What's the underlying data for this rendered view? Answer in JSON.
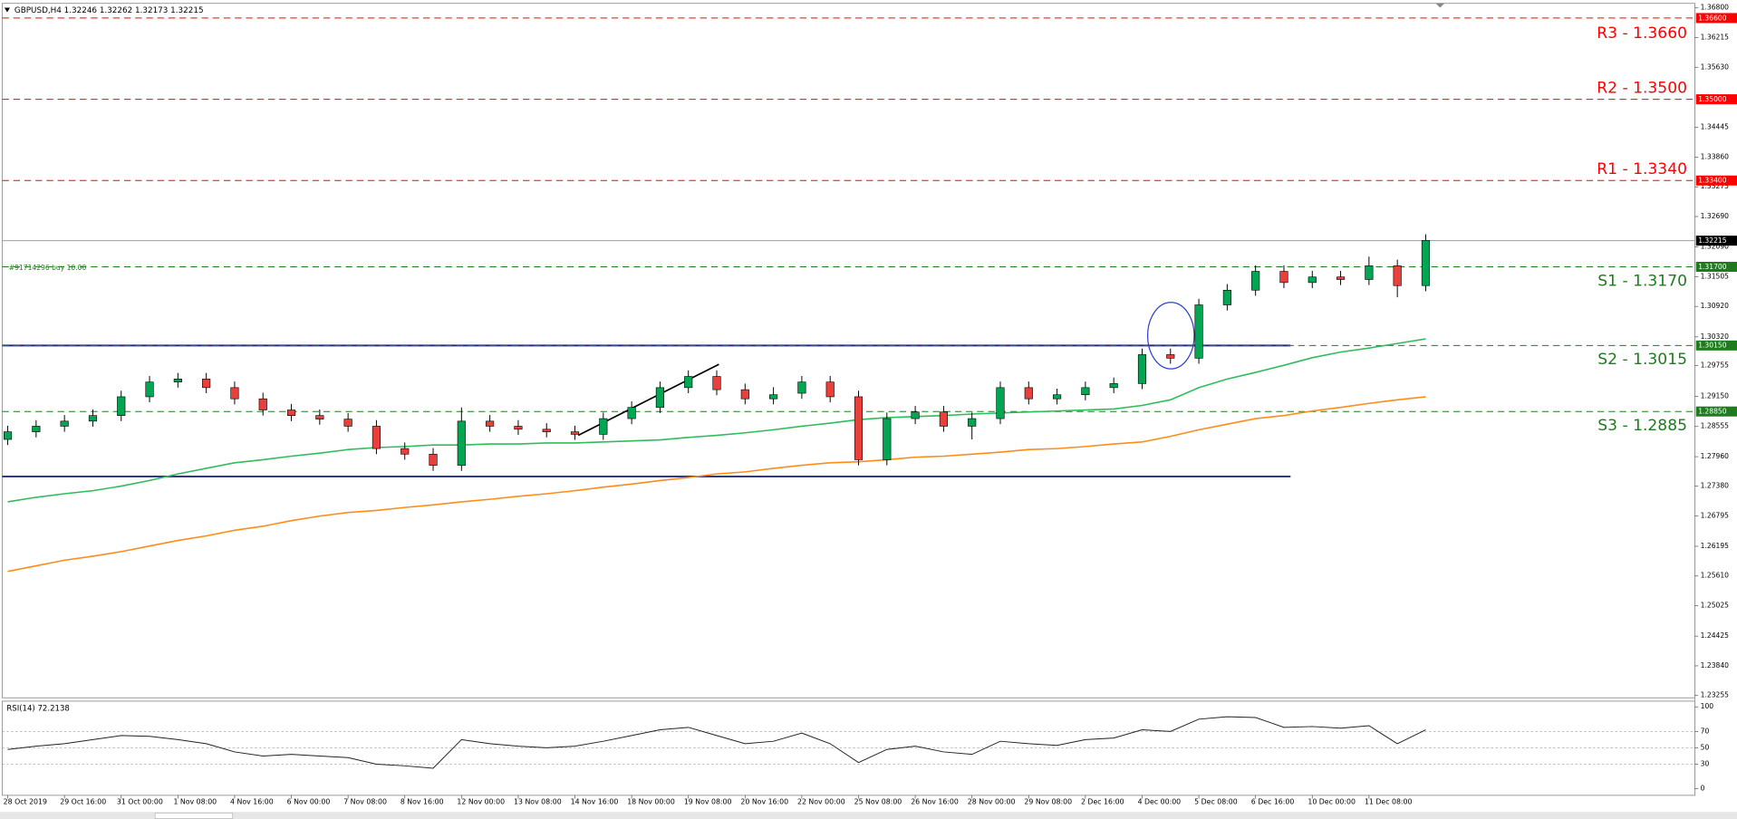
{
  "chart_data": [
    {
      "type": "candlestick",
      "title": "GBPUSD,H4  1.32246 1.32262 1.32173 1.32215",
      "order_label": "#91714296 buy 10.00",
      "categories": [
        "28 Oct 2019",
        null,
        "29 Oct 16:00",
        null,
        "31 Oct 00:00",
        null,
        "1 Nov 08:00",
        null,
        "4 Nov 16:00",
        null,
        "6 Nov 00:00",
        null,
        "7 Nov 08:00",
        null,
        "8 Nov 16:00",
        null,
        "12 Nov 00:00",
        null,
        "13 Nov 08:00",
        null,
        "14 Nov 16:00",
        null,
        "18 Nov 00:00",
        null,
        "19 Nov 08:00",
        null,
        "20 Nov 16:00",
        null,
        "22 Nov 00:00",
        null,
        "25 Nov 08:00",
        null,
        "26 Nov 16:00",
        null,
        "28 Nov 00:00",
        null,
        "29 Nov 08:00",
        null,
        "2 Dec 16:00",
        null,
        "4 Dec 00:00",
        null,
        "5 Dec 08:00",
        null,
        "6 Dec 16:00",
        null,
        "10 Dec 00:00",
        null,
        "11 Dec 08:00",
        null,
        null
      ],
      "open": [
        1.283,
        1.2845,
        1.2856,
        1.2866,
        1.2877,
        1.2914,
        1.2943,
        1.2949,
        1.2932,
        1.291,
        1.2888,
        1.2877,
        1.287,
        1.2856,
        1.2812,
        1.2801,
        1.2779,
        1.2866,
        1.2856,
        1.285,
        1.2845,
        1.284,
        1.2871,
        1.2893,
        1.2932,
        1.2954,
        1.2928,
        1.291,
        1.2921,
        1.2943,
        1.2914,
        1.279,
        1.2871,
        1.2884,
        1.2856,
        1.2871,
        1.2932,
        1.291,
        1.2918,
        1.2932,
        1.294,
        1.2997,
        1.299,
        1.3095,
        1.3124,
        1.3161,
        1.3139,
        1.315,
        1.3145,
        1.3172,
        1.3133
      ],
      "high": [
        1.2857,
        1.2868,
        1.2878,
        1.2889,
        1.2926,
        1.2955,
        1.2961,
        1.2961,
        1.2944,
        1.2922,
        1.29,
        1.2889,
        1.2882,
        1.2868,
        1.2824,
        1.2813,
        1.2893,
        1.2878,
        1.2868,
        1.2862,
        1.2857,
        1.2883,
        1.2905,
        1.2944,
        1.2966,
        1.2966,
        1.294,
        1.2933,
        1.2955,
        1.2955,
        1.2926,
        1.2883,
        1.2896,
        1.2896,
        1.2883,
        1.2944,
        1.2944,
        1.293,
        1.2944,
        1.2952,
        1.3009,
        1.3009,
        1.3107,
        1.3136,
        1.3173,
        1.3173,
        1.3162,
        1.3162,
        1.319,
        1.3184,
        1.3234
      ],
      "low": [
        1.2819,
        1.2834,
        1.2845,
        1.2855,
        1.2866,
        1.2903,
        1.2932,
        1.2921,
        1.2899,
        1.2877,
        1.2866,
        1.2859,
        1.2845,
        1.2801,
        1.279,
        1.2768,
        1.2768,
        1.2845,
        1.2839,
        1.2834,
        1.2829,
        1.2829,
        1.286,
        1.2882,
        1.2921,
        1.2917,
        1.2899,
        1.2899,
        1.291,
        1.2903,
        1.2779,
        1.2779,
        1.286,
        1.2845,
        1.283,
        1.286,
        1.2899,
        1.2899,
        1.2907,
        1.2921,
        1.2929,
        1.2979,
        1.2979,
        1.3084,
        1.3113,
        1.3128,
        1.3128,
        1.3134,
        1.3134,
        1.311,
        1.3122
      ],
      "close": [
        1.2845,
        1.2856,
        1.2866,
        1.2877,
        1.2914,
        1.2943,
        1.2949,
        1.2932,
        1.291,
        1.2888,
        1.2877,
        1.287,
        1.2856,
        1.2812,
        1.2801,
        1.2779,
        1.2866,
        1.2856,
        1.285,
        1.2845,
        1.284,
        1.2871,
        1.2893,
        1.2932,
        1.2954,
        1.2928,
        1.291,
        1.2918,
        1.2943,
        1.2914,
        1.279,
        1.2871,
        1.2884,
        1.2856,
        1.2871,
        1.2932,
        1.291,
        1.2918,
        1.2932,
        1.294,
        1.2997,
        1.299,
        1.3095,
        1.3124,
        1.3161,
        1.3139,
        1.315,
        1.3145,
        1.3172,
        1.3133,
        1.3222
      ],
      "up_color": "#00a651",
      "down_color": "#e8403a",
      "overlays": [
        {
          "color": "#2ebd5a",
          "values": [
            1.2707,
            1.2716,
            1.2723,
            1.2729,
            1.2738,
            1.2749,
            1.2762,
            1.2773,
            1.2784,
            1.279,
            1.2797,
            1.2803,
            1.281,
            1.2814,
            1.2816,
            1.2819,
            1.2819,
            1.2821,
            1.2821,
            1.2823,
            1.2823,
            1.2825,
            1.2827,
            1.2829,
            1.2834,
            1.2838,
            1.2843,
            1.2849,
            1.2856,
            1.2862,
            1.2869,
            1.2873,
            1.2875,
            1.2877,
            1.288,
            1.2882,
            1.2884,
            1.2886,
            1.2888,
            1.289,
            1.2897,
            1.2908,
            1.2932,
            1.2949,
            1.2962,
            1.2976,
            1.2991,
            1.3002,
            1.301,
            1.3019,
            1.3028
          ]
        },
        {
          "color": "#ff8c1a",
          "values": [
            1.257,
            1.2581,
            1.2592,
            1.26,
            1.2609,
            1.262,
            1.2631,
            1.264,
            1.2651,
            1.2659,
            1.267,
            1.2679,
            1.2686,
            1.269,
            1.2696,
            1.2701,
            1.2707,
            1.2712,
            1.2718,
            1.2723,
            1.2729,
            1.2736,
            1.2742,
            1.2749,
            1.2755,
            1.2762,
            1.2766,
            1.2773,
            1.2779,
            1.2784,
            1.2786,
            1.279,
            1.2795,
            1.2797,
            1.2801,
            1.2805,
            1.281,
            1.2812,
            1.2816,
            1.2821,
            1.2825,
            1.2836,
            1.2849,
            1.286,
            1.2871,
            1.2877,
            1.2886,
            1.2893,
            1.2901,
            1.2908,
            1.2914
          ]
        }
      ],
      "levels": [
        {
          "value": 1.3015,
          "color": "#1f2a8c"
        },
        {
          "value": 1.2757,
          "color": "#1f2a8c"
        }
      ],
      "trend_line": [
        1.2838,
        1.2978
      ],
      "lines": [
        {
          "label": "R3 - 1.3660",
          "value": 1.366,
          "tag": "1.36600",
          "color": "#ff0000",
          "style": "dashed"
        },
        {
          "label": "R2 - 1.3500",
          "value": 1.35,
          "tag": "1.35000",
          "color": "#ff0000",
          "style": "dashed"
        },
        {
          "label": "R1 - 1.3340",
          "value": 1.334,
          "tag": "1.33400",
          "color": "#ff0000",
          "style": "dashed"
        },
        {
          "value": 1.32215,
          "tag": "1.32215",
          "color": "#9aa0a8",
          "style": "solid"
        },
        {
          "label": "S1 - 1.3170",
          "value": 1.317,
          "tag": "1.31700",
          "color": "#1e7b1e",
          "style": "dashed"
        },
        {
          "label": "S2 - 1.3015",
          "value": 1.3015,
          "tag": "1.30150",
          "color": "#1e7b1e",
          "style": "dashed"
        },
        {
          "label": "S3 - 1.2885",
          "value": 1.2885,
          "tag": "1.28850",
          "color": "#1e7b1e",
          "style": "dashed"
        }
      ],
      "ylim": [
        1.2321,
        1.3689
      ],
      "yticks": [
        {
          "value": 1.368,
          "label": "1.36800"
        },
        {
          "value": 1.36215,
          "label": "1.36215"
        },
        {
          "value": 1.3563,
          "label": "1.35630"
        },
        {
          "value": 1.34445,
          "label": "1.34445"
        },
        {
          "value": 1.3386,
          "label": "1.33860"
        },
        {
          "value": 1.33275,
          "label": "1.33275"
        },
        {
          "value": 1.3269,
          "label": "1.32690"
        },
        {
          "value": 1.3209,
          "label": "1.32090"
        },
        {
          "value": 1.31505,
          "label": "1.31505"
        },
        {
          "value": 1.3092,
          "label": "1.30920"
        },
        {
          "value": 1.3032,
          "label": "1.30320"
        },
        {
          "value": 1.29755,
          "label": "1.29755"
        },
        {
          "value": 1.2915,
          "label": "1.29150"
        },
        {
          "value": 1.28555,
          "label": "1.28555"
        },
        {
          "value": 1.2796,
          "label": "1.27960"
        },
        {
          "value": 1.2738,
          "label": "1.27380"
        },
        {
          "value": 1.26795,
          "label": "1.26795"
        },
        {
          "value": 1.26195,
          "label": "1.26195"
        },
        {
          "value": 1.2561,
          "label": "1.25610"
        },
        {
          "value": 1.25025,
          "label": "1.25025"
        },
        {
          "value": 1.24425,
          "label": "1.24425"
        },
        {
          "value": 1.2384,
          "label": "1.23840"
        },
        {
          "value": 1.23255,
          "label": "1.23255"
        }
      ]
    },
    {
      "type": "line",
      "title": "RSI(14) 72.2138",
      "color": "#222222",
      "values": [
        48,
        52,
        55,
        60,
        65,
        64,
        60,
        55,
        45,
        40,
        42,
        40,
        38,
        30,
        28,
        25,
        60,
        55,
        52,
        50,
        52,
        58,
        65,
        72,
        75,
        65,
        55,
        58,
        68,
        55,
        32,
        48,
        52,
        45,
        42,
        58,
        55,
        53,
        60,
        62,
        72,
        70,
        85,
        88,
        87,
        75,
        76,
        74,
        77,
        55,
        72
      ],
      "ylim": [
        -8,
        107
      ],
      "yticks": [
        0,
        30,
        50,
        70,
        100
      ],
      "dotted": [
        30,
        50,
        70
      ]
    }
  ]
}
